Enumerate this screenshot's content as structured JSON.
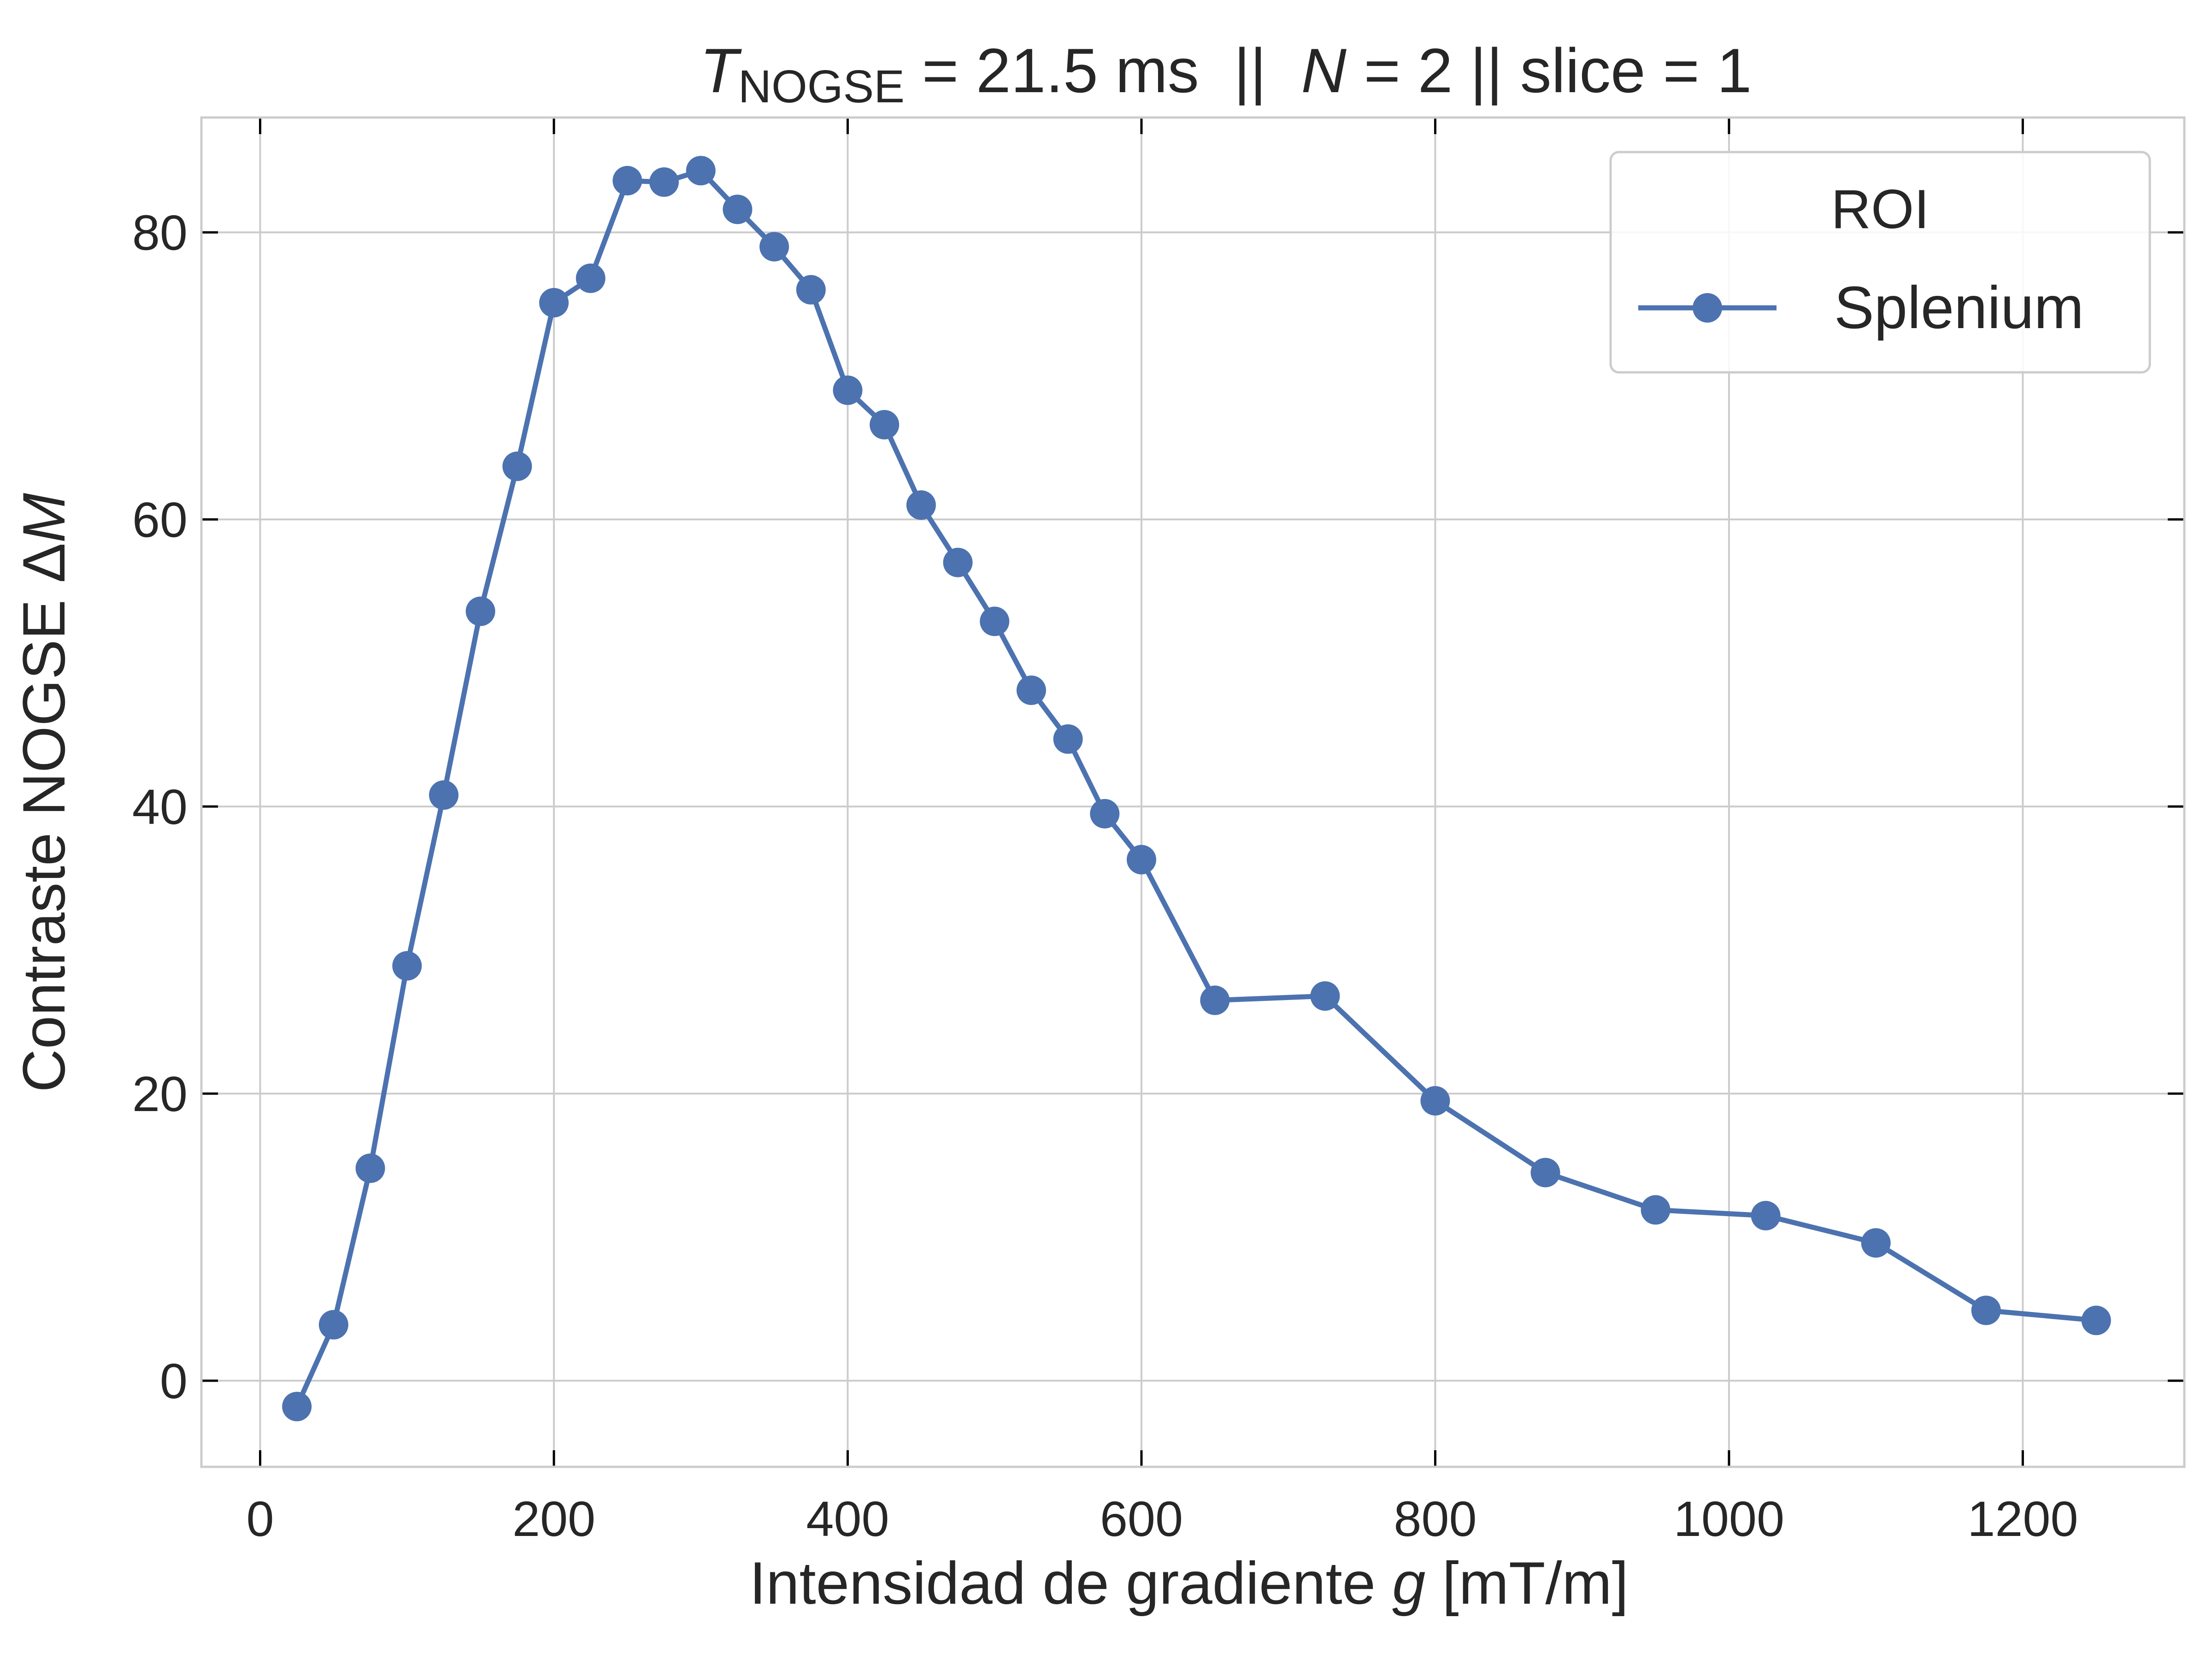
{
  "chart_data": {
    "type": "line",
    "title": {
      "t_symbol": "T",
      "t_subscript": "NOGSE",
      "t_value": " = 21.5 ms  ||  ",
      "n_symbol": "N",
      "rest": " = 2 || slice = 1"
    },
    "xlabel": {
      "prefix": "Intensidad de gradiente ",
      "symbol": "g",
      "suffix": " [mT/m]"
    },
    "ylabel": {
      "prefix": "Contraste NOGSE Δ",
      "symbol": "M"
    },
    "xlim": [
      -40,
      1310
    ],
    "ylim": [
      -6,
      88
    ],
    "xticks": [
      0,
      200,
      400,
      600,
      800,
      1000,
      1200
    ],
    "yticks": [
      0,
      20,
      40,
      60,
      80
    ],
    "grid": true,
    "legend": {
      "title": "ROI",
      "placement": "top-right"
    },
    "series": [
      {
        "name": "Splenium",
        "color": "#4c72b0",
        "x": [
          25,
          50,
          75,
          100,
          125,
          150,
          175,
          200,
          225,
          250,
          275,
          300,
          325,
          350,
          375,
          400,
          425,
          450,
          475,
          500,
          525,
          550,
          575,
          600,
          650,
          725,
          800,
          875,
          950,
          1025,
          1100,
          1175,
          1250
        ],
        "y": [
          -1.8,
          3.9,
          14.8,
          28.9,
          40.8,
          53.6,
          63.7,
          75.1,
          76.8,
          83.6,
          83.5,
          84.3,
          81.6,
          79.0,
          76.0,
          69.0,
          66.6,
          61.0,
          57.0,
          52.9,
          48.1,
          44.7,
          39.5,
          36.3,
          26.5,
          26.8,
          19.5,
          14.5,
          11.9,
          11.5,
          9.6,
          4.9,
          4.2
        ]
      }
    ]
  }
}
